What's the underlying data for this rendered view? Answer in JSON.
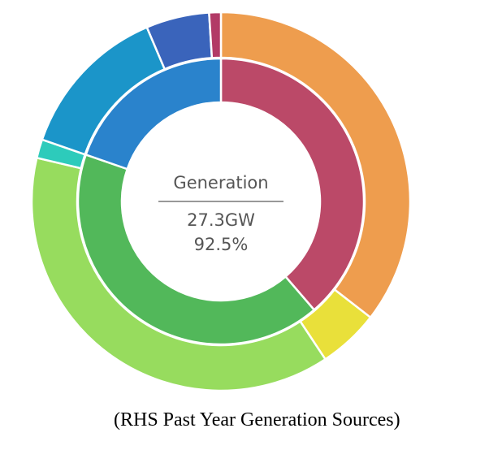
{
  "chart_data": {
    "type": "pie",
    "center": {
      "title": "Generation",
      "value": "27.3GW",
      "percent": "92.5%"
    },
    "inner_ring": [
      {
        "value": 38.7,
        "color": "#bb4968"
      },
      {
        "value": 41.6,
        "color": "#52b85a"
      },
      {
        "value": 19.7,
        "color": "#2a83cc"
      }
    ],
    "outer_ring": [
      {
        "value": 35.5,
        "color": "#ee9d4e"
      },
      {
        "value": 5.2,
        "color": "#e9e03a"
      },
      {
        "value": 38.0,
        "color": "#97dc5e"
      },
      {
        "value": 1.6,
        "color": "#2dcbbb"
      },
      {
        "value": 13.3,
        "color": "#1b95c9"
      },
      {
        "value": 5.4,
        "color": "#3a64bb"
      },
      {
        "value": 1.0,
        "color": "#b23a66"
      }
    ]
  },
  "caption": "(RHS Past Year Generation Sources)"
}
